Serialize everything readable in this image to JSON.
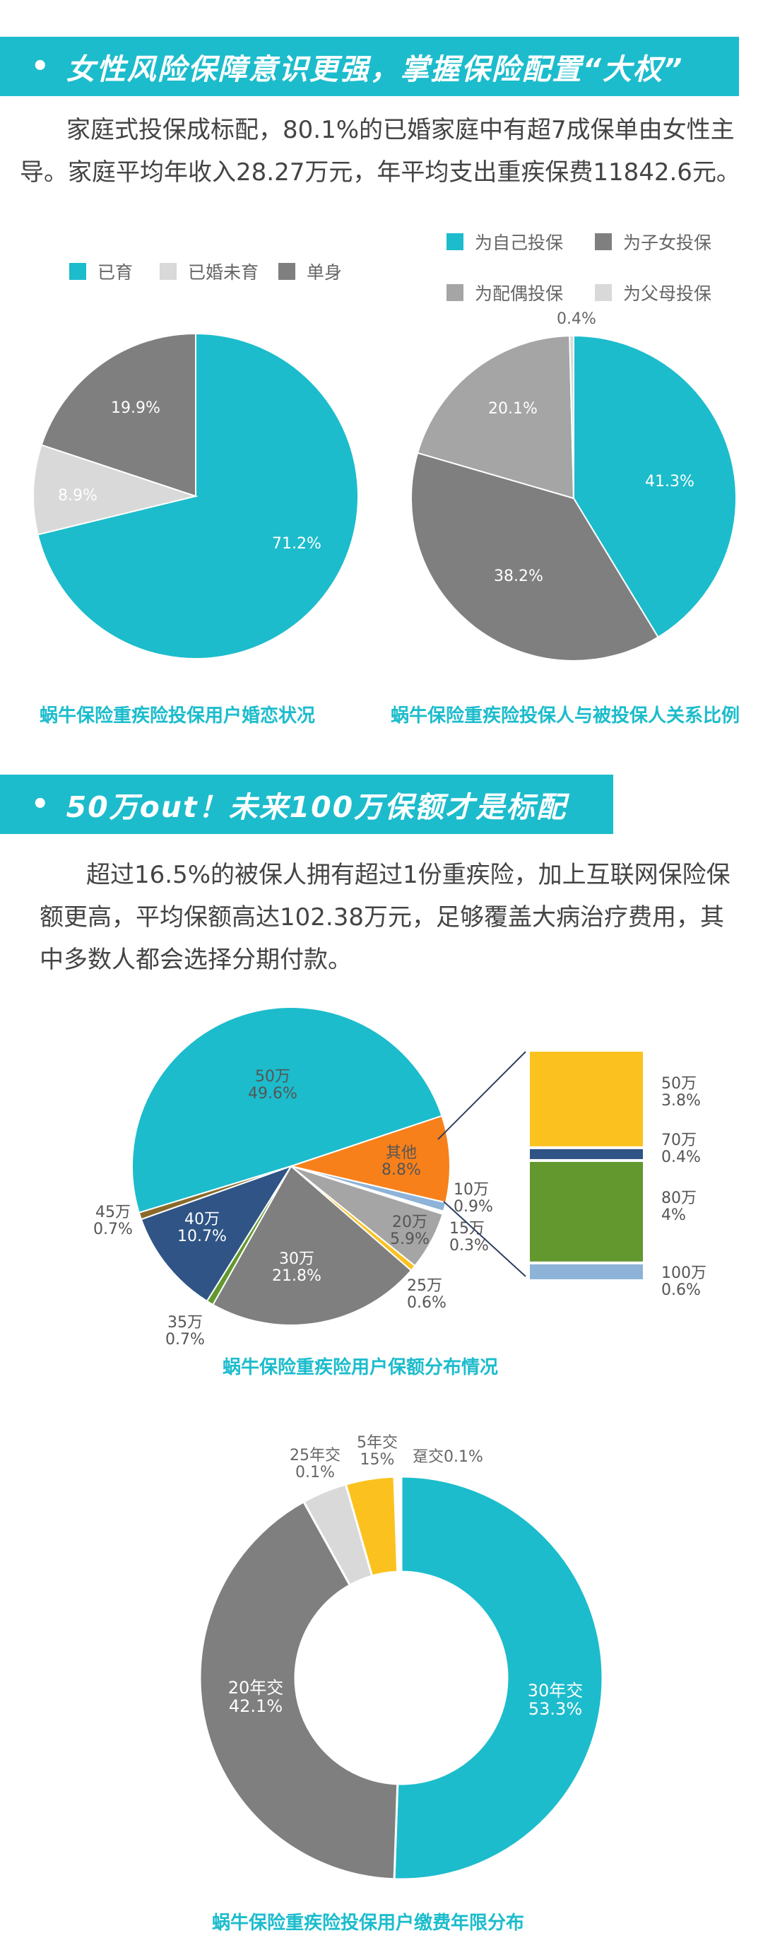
{
  "colors": {
    "teal": "#1cbccc",
    "dark_gray": "#7f7f7f",
    "light_gray": "#d9d9d9",
    "mid_gray": "#a5a5a5",
    "orange": "#f7801b",
    "navy": "#2f5485",
    "yellow": "#fbc21f",
    "green": "#63982f",
    "light_blue": "#8eb3d9"
  },
  "section1": {
    "title": "女性风险保障意识更强，掌握保险配置“大权”",
    "lines": [
      "家庭式投保成标配，80.1%的已婚家庭中有超7成保单由女性主",
      "导。家庭平均年收入28.27万元，年平均支出重疾保费11842.6元。"
    ]
  },
  "section2": {
    "title": "50万out！未来100万保额才是标配",
    "lines": [
      "超过16.5%的被保人拥有超过1份重疾险，加上互联网保险保",
      "额更高，平均保额高达102.38万元，足够覆盖大病治疗费用，其",
      "中多数人都会选择分期付款。"
    ]
  },
  "chart_data": [
    {
      "type": "pie",
      "title": "蜗牛保险重疾险投保用户婚恋状况",
      "legend_position": "top",
      "series": [
        {
          "name": "已育",
          "value": 71.2,
          "label": "71.2%",
          "color": "#1cbccc"
        },
        {
          "name": "已婚未育",
          "value": 8.9,
          "label": "8.9%",
          "color": "#d9d9d9"
        },
        {
          "name": "单身",
          "value": 19.9,
          "label": "19.9%",
          "color": "#7f7f7f"
        }
      ]
    },
    {
      "type": "pie",
      "title": "蜗牛保险重疾险投保人与被投保人关系比例",
      "legend_position": "top",
      "series": [
        {
          "name": "为自己投保",
          "value": 41.3,
          "label": "41.3%",
          "color": "#1cbccc"
        },
        {
          "name": "为子女投保",
          "value": 38.2,
          "label": "38.2%",
          "color": "#7f7f7f"
        },
        {
          "name": "为配偶投保",
          "value": 20.1,
          "label": "20.1%",
          "color": "#a5a5a5"
        },
        {
          "name": "为父母投保",
          "value": 0.4,
          "label": "0.4%",
          "color": "#d9d9d9"
        }
      ]
    },
    {
      "type": "pie",
      "title": "蜗牛保险重疾险用户保额分布情况",
      "series": [
        {
          "name": "50万",
          "value": 49.6,
          "label": "49.6%",
          "color": "#1cbccc"
        },
        {
          "name": "其他",
          "value": 8.8,
          "label": "8.8%",
          "color": "#f7801b"
        },
        {
          "name": "10万",
          "value": 0.9,
          "label": "0.9%",
          "color": "#8eb3d9"
        },
        {
          "name": "15万",
          "value": 0.3,
          "label": "0.3%",
          "color": "#ffffff"
        },
        {
          "name": "20万",
          "value": 5.9,
          "label": "5.9%",
          "color": "#a5a5a5"
        },
        {
          "name": "25万",
          "value": 0.6,
          "label": "0.6%",
          "color": "#fbc21f"
        },
        {
          "name": "30万",
          "value": 21.8,
          "label": "21.8%",
          "color": "#7f7f7f"
        },
        {
          "name": "35万",
          "value": 0.7,
          "label": "0.7%",
          "color": "#63982f"
        },
        {
          "name": "40万",
          "value": 10.7,
          "label": "10.7%",
          "color": "#2f5485"
        },
        {
          "name": "45万",
          "value": 0.7,
          "label": "0.7%",
          "color": "#8a6a2a"
        }
      ],
      "breakdown_of": "其他",
      "breakdown": [
        {
          "name": "50万",
          "value": 3.8,
          "label": "3.8%",
          "color": "#fbc21f"
        },
        {
          "name": "70万",
          "value": 0.4,
          "label": "0.4%",
          "color": "#2f5485"
        },
        {
          "name": "80万",
          "value": 4,
          "label": "4%",
          "color": "#63982f"
        },
        {
          "name": "100万",
          "value": 0.6,
          "label": "0.6%",
          "color": "#8eb3d9"
        }
      ]
    },
    {
      "type": "pie",
      "subtype": "donut",
      "title": "蜗牛保险重疾险投保用户缴费年限分布",
      "series": [
        {
          "name": "30年交",
          "value": 53.3,
          "label": "53.3%",
          "color": "#1cbccc"
        },
        {
          "name": "20年交",
          "value": 42.1,
          "label": "42.1%",
          "color": "#7f7f7f"
        },
        {
          "name": "25年交",
          "value": 0.1,
          "label": "0.1%",
          "color": "#d9d9d9"
        },
        {
          "name": "5年交",
          "value": 15,
          "label": "15%",
          "color": "#fbc21f"
        },
        {
          "name": "趸交",
          "value": 0.1,
          "label": "0.1%",
          "color": "#ffffff"
        }
      ]
    }
  ]
}
